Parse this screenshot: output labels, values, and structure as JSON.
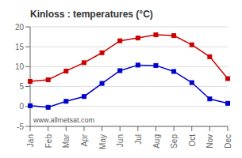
{
  "chart_data": {
    "type": "line",
    "title": "Kinloss : temperatures (°C)",
    "categories": [
      "Jan",
      "Feb",
      "Mar",
      "Apr",
      "May",
      "Jun",
      "Jul",
      "Aug",
      "Sep",
      "Oct",
      "Nov",
      "Dec"
    ],
    "series": [
      {
        "color": "#cc0000",
        "marker": "square",
        "values": [
          6.3,
          6.7,
          8.9,
          11.0,
          13.5,
          16.5,
          17.2,
          18.0,
          17.8,
          15.5,
          12.5,
          7.0
        ]
      },
      {
        "color": "#0000cc",
        "marker": "square",
        "values": [
          0.2,
          -0.2,
          1.3,
          2.5,
          5.8,
          9.0,
          10.4,
          10.3,
          8.8,
          6.0,
          1.9,
          0.8
        ]
      }
    ],
    "ylim": [
      -5,
      20
    ],
    "yticks": [
      -5,
      0,
      5,
      10,
      15,
      20
    ],
    "grid": "y",
    "annotations": [
      "www.allmetsat.com"
    ]
  }
}
